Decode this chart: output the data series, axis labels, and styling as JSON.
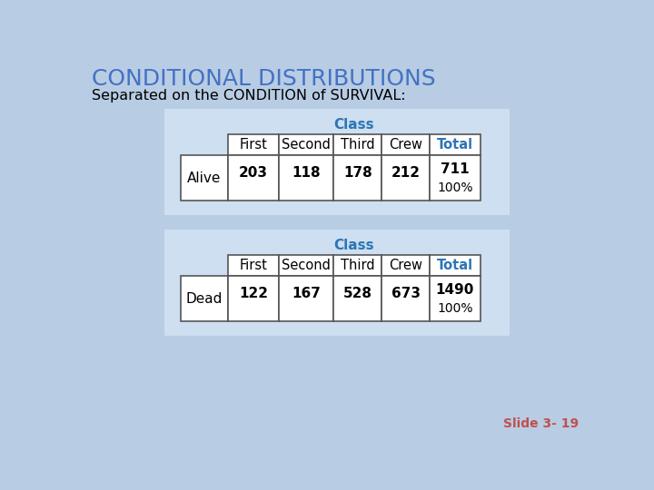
{
  "title": "CONDITIONAL DISTRIBUTIONS",
  "subtitle": "Separated on the CONDITION of SURVIVAL:",
  "bg_color": "#b8cce4",
  "title_color": "#4472c4",
  "subtitle_color": "#000000",
  "slide_label": "Slide 3- 19",
  "slide_label_color": "#c0504d",
  "table_bg": "#cddff0",
  "table_border": "#555555",
  "header_color": "#2e75b6",
  "total_color": "#2e75b6",
  "cell_bg": "#ffffff",
  "table1": {
    "class_header": "Class",
    "col_headers": [
      "First",
      "Second",
      "Third",
      "Crew",
      "Total"
    ],
    "row_label": "Alive",
    "values": [
      "203",
      "118",
      "178",
      "212",
      "711"
    ],
    "percent": "100%"
  },
  "table2": {
    "class_header": "Class",
    "col_headers": [
      "First",
      "Second",
      "Third",
      "Crew",
      "Total"
    ],
    "row_label": "Dead",
    "values": [
      "122",
      "167",
      "528",
      "673",
      "1490"
    ],
    "percent": "100%"
  }
}
